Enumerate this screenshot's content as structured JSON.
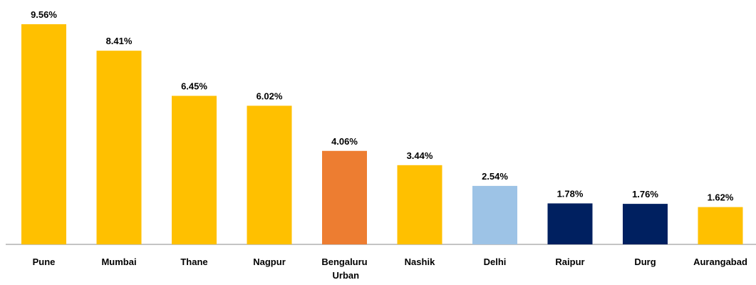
{
  "chart_data": {
    "type": "bar",
    "categories": [
      "Pune",
      "Mumbai",
      "Thane",
      "Nagpur",
      "Bengaluru Urban",
      "Nashik",
      "Delhi",
      "Raipur",
      "Durg",
      "Aurangabad"
    ],
    "values": [
      9.56,
      8.41,
      6.45,
      6.02,
      4.06,
      3.44,
      2.54,
      1.78,
      1.76,
      1.62
    ],
    "value_labels": [
      "9.56%",
      "8.41%",
      "6.45%",
      "6.02%",
      "4.06%",
      "3.44%",
      "2.54%",
      "1.78%",
      "1.76%",
      "1.62%"
    ],
    "colors": [
      "#FFC000",
      "#FFC000",
      "#FFC000",
      "#FFC000",
      "#ED7D31",
      "#FFC000",
      "#9DC3E6",
      "#002060",
      "#002060",
      "#FFC000"
    ]
  }
}
